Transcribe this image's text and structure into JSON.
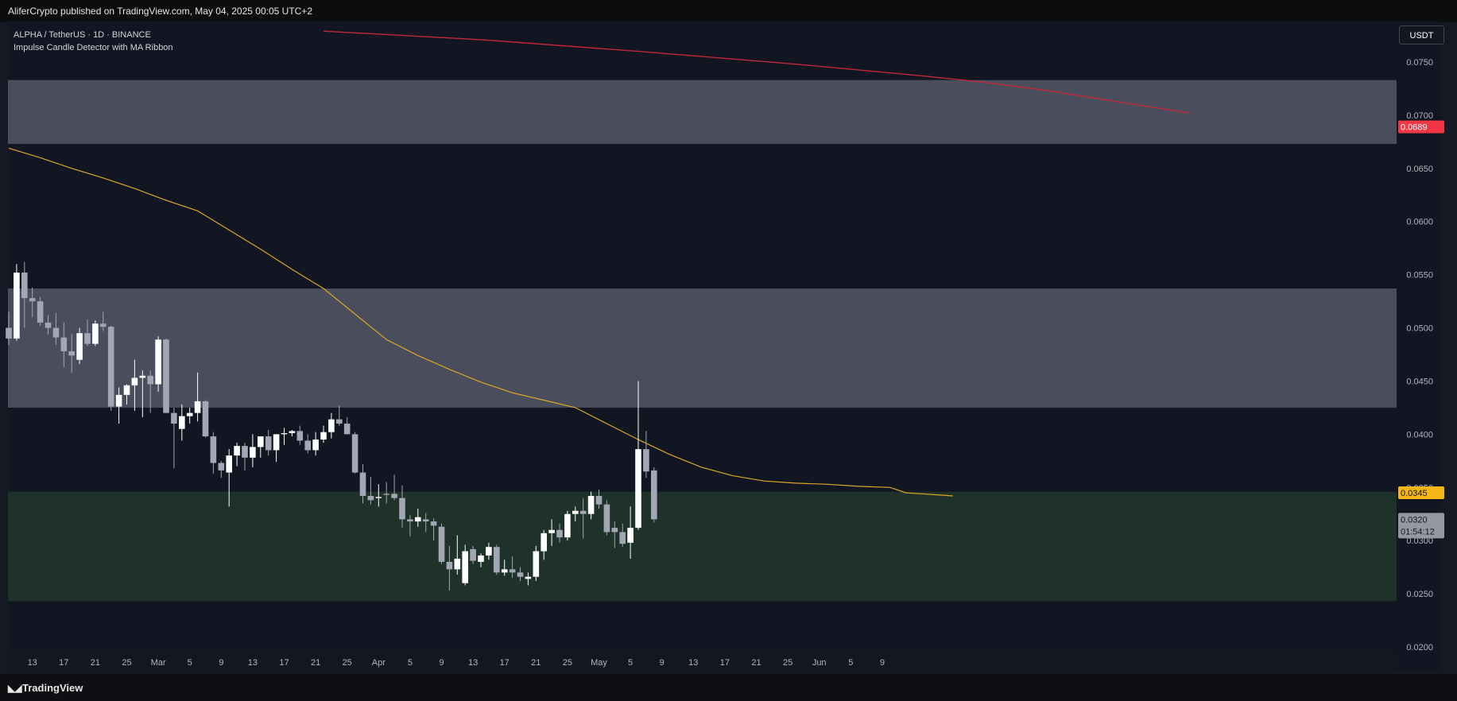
{
  "header": {
    "published": "AliferCrypto published on TradingView.com, May 04, 2025 00:05 UTC+2"
  },
  "legend": {
    "symbol": "ALPHA / TetherUS · 1D · BINANCE",
    "indicator": "Impulse Candle Detector with MA Ribbon"
  },
  "currency_button": "USDT",
  "footer": {
    "brand": "TradingView"
  },
  "colors": {
    "zone_gray": "#4a4e5c",
    "zone_green": "#1e3229",
    "ma_long": "#c2273a",
    "ma_mid": "#e0a526",
    "up_candle": "#ffffff",
    "down_candle": "#a3a6b4"
  },
  "chart_data": {
    "type": "candlestick",
    "title": "ALPHA / TetherUS · 1D · BINANCE",
    "y_axis_ticks": [
      "0.0750",
      "0.0700",
      "0.0650",
      "0.0600",
      "0.0550",
      "0.0500",
      "0.0450",
      "0.0400",
      "0.0350",
      "0.0300",
      "0.0250",
      "0.0200"
    ],
    "ylim": [
      0.02,
      0.0775
    ],
    "x_axis_ticks": [
      "13",
      "17",
      "21",
      "25",
      "Mar",
      "5",
      "9",
      "13",
      "17",
      "21",
      "25",
      "Apr",
      "5",
      "9",
      "13",
      "17",
      "21",
      "25",
      "May",
      "5",
      "9",
      "13",
      "17",
      "21",
      "25",
      "Jun",
      "5",
      "9"
    ],
    "price_labels": [
      {
        "name": "ma-long-value",
        "value": "0.0689",
        "bg": "#f23645",
        "fg": "#ffffff"
      },
      {
        "name": "ma-mid-value",
        "value": "0.0345",
        "bg": "#f5b617",
        "fg": "#131722"
      },
      {
        "name": "last-price",
        "value": "0.0320",
        "sub": "01:54:12",
        "bg": "#9598a1",
        "fg": "#131722"
      }
    ],
    "zones": [
      {
        "name": "upper-resistance-zone",
        "from": 0.0673,
        "to": 0.0733
      },
      {
        "name": "mid-resistance-zone",
        "from": 0.0425,
        "to": 0.0537
      },
      {
        "name": "support-zone",
        "from": 0.0243,
        "to": 0.0346
      }
    ],
    "ma_long": [
      [
        40,
        0.0779
      ],
      [
        60,
        0.0771
      ],
      [
        80,
        0.076
      ],
      [
        100,
        0.0748
      ],
      [
        116,
        0.0737
      ],
      [
        120,
        0.0734
      ],
      [
        124,
        0.0731
      ],
      [
        132,
        0.0723
      ],
      [
        150,
        0.0702
      ]
    ],
    "ma_mid": [
      [
        0,
        0.0669
      ],
      [
        4,
        0.066
      ],
      [
        8,
        0.065
      ],
      [
        12,
        0.0641
      ],
      [
        16,
        0.0631
      ],
      [
        20,
        0.062
      ],
      [
        24,
        0.061
      ],
      [
        28,
        0.0592
      ],
      [
        32,
        0.0574
      ],
      [
        36,
        0.0555
      ],
      [
        40,
        0.0537
      ],
      [
        44,
        0.0513
      ],
      [
        48,
        0.0489
      ],
      [
        52,
        0.0474
      ],
      [
        56,
        0.0461
      ],
      [
        60,
        0.0449
      ],
      [
        64,
        0.0439
      ],
      [
        68,
        0.0432
      ],
      [
        72,
        0.0425
      ],
      [
        76,
        0.041
      ],
      [
        80,
        0.0395
      ],
      [
        84,
        0.0381
      ],
      [
        88,
        0.0369
      ],
      [
        92,
        0.0361
      ],
      [
        96,
        0.0356
      ],
      [
        100,
        0.0354
      ],
      [
        104,
        0.0353
      ],
      [
        108,
        0.0351
      ],
      [
        112,
        0.035
      ],
      [
        114,
        0.0345
      ],
      [
        116,
        0.0344
      ],
      [
        118,
        0.0343
      ],
      [
        120,
        0.0342
      ]
    ],
    "candles": [
      {
        "d": "Feb 10",
        "o": 0.05,
        "h": 0.0515,
        "l": 0.0484,
        "c": 0.049
      },
      {
        "d": "Feb 11",
        "o": 0.049,
        "h": 0.056,
        "l": 0.0488,
        "c": 0.0552
      },
      {
        "d": "Feb 12",
        "o": 0.0552,
        "h": 0.0562,
        "l": 0.05,
        "c": 0.0528
      },
      {
        "d": "Feb 13",
        "o": 0.0528,
        "h": 0.0538,
        "l": 0.051,
        "c": 0.0525
      },
      {
        "d": "Feb 14",
        "o": 0.0525,
        "h": 0.0529,
        "l": 0.0502,
        "c": 0.0505
      },
      {
        "d": "Feb 15",
        "o": 0.0505,
        "h": 0.0512,
        "l": 0.0494,
        "c": 0.05
      },
      {
        "d": "Feb 16",
        "o": 0.05,
        "h": 0.0514,
        "l": 0.0484,
        "c": 0.0491
      },
      {
        "d": "Feb 17",
        "o": 0.0491,
        "h": 0.0505,
        "l": 0.0463,
        "c": 0.0478
      },
      {
        "d": "Feb 18",
        "o": 0.0478,
        "h": 0.0494,
        "l": 0.0458,
        "c": 0.0474
      },
      {
        "d": "Feb 19",
        "o": 0.047,
        "h": 0.05,
        "l": 0.0466,
        "c": 0.0495
      },
      {
        "d": "Feb 20",
        "o": 0.0495,
        "h": 0.0508,
        "l": 0.0483,
        "c": 0.0485
      },
      {
        "d": "Feb 21",
        "o": 0.0485,
        "h": 0.0507,
        "l": 0.0483,
        "c": 0.0504
      },
      {
        "d": "Feb 22",
        "o": 0.0504,
        "h": 0.0515,
        "l": 0.0497,
        "c": 0.0501
      },
      {
        "d": "Feb 23",
        "o": 0.0501,
        "h": 0.0502,
        "l": 0.0422,
        "c": 0.0426
      },
      {
        "d": "Feb 24",
        "o": 0.0426,
        "h": 0.0444,
        "l": 0.041,
        "c": 0.0437
      },
      {
        "d": "Feb 25",
        "o": 0.0437,
        "h": 0.0447,
        "l": 0.0428,
        "c": 0.0446
      },
      {
        "d": "Feb 26",
        "o": 0.0446,
        "h": 0.047,
        "l": 0.0422,
        "c": 0.0453
      },
      {
        "d": "Feb 27",
        "o": 0.0453,
        "h": 0.046,
        "l": 0.0416,
        "c": 0.0455
      },
      {
        "d": "Feb 28",
        "o": 0.0455,
        "h": 0.046,
        "l": 0.042,
        "c": 0.0447
      },
      {
        "d": "Mar 1",
        "o": 0.0447,
        "h": 0.0492,
        "l": 0.044,
        "c": 0.0489
      },
      {
        "d": "Mar 2",
        "o": 0.0489,
        "h": 0.049,
        "l": 0.0422,
        "c": 0.042
      },
      {
        "d": "Mar 3",
        "o": 0.042,
        "h": 0.0425,
        "l": 0.0368,
        "c": 0.041
      },
      {
        "d": "Mar 4",
        "o": 0.0405,
        "h": 0.0428,
        "l": 0.0394,
        "c": 0.0417
      },
      {
        "d": "Mar 5",
        "o": 0.0417,
        "h": 0.0425,
        "l": 0.041,
        "c": 0.042
      },
      {
        "d": "Mar 6",
        "o": 0.042,
        "h": 0.0458,
        "l": 0.0412,
        "c": 0.0431
      },
      {
        "d": "Mar 7",
        "o": 0.0431,
        "h": 0.0432,
        "l": 0.0397,
        "c": 0.0398
      },
      {
        "d": "Mar 8",
        "o": 0.0398,
        "h": 0.0402,
        "l": 0.0363,
        "c": 0.0373
      },
      {
        "d": "Mar 9",
        "o": 0.0373,
        "h": 0.0375,
        "l": 0.0359,
        "c": 0.0366
      },
      {
        "d": "Mar 10",
        "o": 0.0364,
        "h": 0.0386,
        "l": 0.0332,
        "c": 0.038
      },
      {
        "d": "Mar 11",
        "o": 0.038,
        "h": 0.0392,
        "l": 0.037,
        "c": 0.0389
      },
      {
        "d": "Mar 12",
        "o": 0.0389,
        "h": 0.0392,
        "l": 0.0366,
        "c": 0.0378
      },
      {
        "d": "Mar 13",
        "o": 0.0378,
        "h": 0.04,
        "l": 0.0369,
        "c": 0.0388
      },
      {
        "d": "Mar 14",
        "o": 0.0388,
        "h": 0.0395,
        "l": 0.0378,
        "c": 0.0398
      },
      {
        "d": "Mar 15",
        "o": 0.0398,
        "h": 0.0404,
        "l": 0.038,
        "c": 0.0385
      },
      {
        "d": "Mar 16",
        "o": 0.0385,
        "h": 0.04,
        "l": 0.0374,
        "c": 0.04
      },
      {
        "d": "Mar 17",
        "o": 0.04,
        "h": 0.0406,
        "l": 0.039,
        "c": 0.0401
      },
      {
        "d": "Mar 18",
        "o": 0.0401,
        "h": 0.0404,
        "l": 0.0398,
        "c": 0.0403
      },
      {
        "d": "Mar 19",
        "o": 0.0403,
        "h": 0.0408,
        "l": 0.039,
        "c": 0.0394
      },
      {
        "d": "Mar 20",
        "o": 0.0394,
        "h": 0.04,
        "l": 0.0382,
        "c": 0.0385
      },
      {
        "d": "Mar 21",
        "o": 0.0385,
        "h": 0.0402,
        "l": 0.038,
        "c": 0.0395
      },
      {
        "d": "Mar 22",
        "o": 0.0395,
        "h": 0.0408,
        "l": 0.0392,
        "c": 0.0402
      },
      {
        "d": "Mar 23",
        "o": 0.0402,
        "h": 0.042,
        "l": 0.0396,
        "c": 0.0414
      },
      {
        "d": "Mar 24",
        "o": 0.0414,
        "h": 0.0427,
        "l": 0.0408,
        "c": 0.041
      },
      {
        "d": "Mar 25",
        "o": 0.041,
        "h": 0.0416,
        "l": 0.04,
        "c": 0.04
      },
      {
        "d": "Mar 26",
        "o": 0.04,
        "h": 0.0402,
        "l": 0.0363,
        "c": 0.0364
      },
      {
        "d": "Mar 27",
        "o": 0.0364,
        "h": 0.0372,
        "l": 0.0335,
        "c": 0.0342
      },
      {
        "d": "Mar 28",
        "o": 0.0342,
        "h": 0.036,
        "l": 0.0334,
        "c": 0.0338
      },
      {
        "d": "Mar 29",
        "o": 0.034,
        "h": 0.0353,
        "l": 0.0332,
        "c": 0.0341
      },
      {
        "d": "Mar 30",
        "o": 0.0344,
        "h": 0.0355,
        "l": 0.0335,
        "c": 0.0343
      },
      {
        "d": "Mar 31",
        "o": 0.0344,
        "h": 0.0362,
        "l": 0.0338,
        "c": 0.034
      },
      {
        "d": "Apr 1",
        "o": 0.034,
        "h": 0.0352,
        "l": 0.0312,
        "c": 0.032
      },
      {
        "d": "Apr 2",
        "o": 0.032,
        "h": 0.0324,
        "l": 0.0304,
        "c": 0.0318
      },
      {
        "d": "Apr 3",
        "o": 0.0318,
        "h": 0.033,
        "l": 0.0313,
        "c": 0.0322
      },
      {
        "d": "Apr 4",
        "o": 0.032,
        "h": 0.0326,
        "l": 0.0308,
        "c": 0.0318
      },
      {
        "d": "Apr 5",
        "o": 0.0318,
        "h": 0.0321,
        "l": 0.03,
        "c": 0.0314
      },
      {
        "d": "Apr 6",
        "o": 0.0313,
        "h": 0.0316,
        "l": 0.0278,
        "c": 0.028
      },
      {
        "d": "Apr 7",
        "o": 0.028,
        "h": 0.0295,
        "l": 0.0253,
        "c": 0.0273
      },
      {
        "d": "Apr 8",
        "o": 0.0273,
        "h": 0.0305,
        "l": 0.0268,
        "c": 0.0283
      },
      {
        "d": "Apr 9",
        "o": 0.026,
        "h": 0.0296,
        "l": 0.0258,
        "c": 0.029
      },
      {
        "d": "Apr 10",
        "o": 0.0292,
        "h": 0.0295,
        "l": 0.0278,
        "c": 0.0281
      },
      {
        "d": "Apr 11",
        "o": 0.028,
        "h": 0.0288,
        "l": 0.0275,
        "c": 0.0286
      },
      {
        "d": "Apr 12",
        "o": 0.0286,
        "h": 0.0298,
        "l": 0.0282,
        "c": 0.0294
      },
      {
        "d": "Apr 13",
        "o": 0.0294,
        "h": 0.0296,
        "l": 0.0268,
        "c": 0.027
      },
      {
        "d": "Apr 14",
        "o": 0.027,
        "h": 0.0282,
        "l": 0.0267,
        "c": 0.0273
      },
      {
        "d": "Apr 15",
        "o": 0.0273,
        "h": 0.0285,
        "l": 0.0265,
        "c": 0.027
      },
      {
        "d": "Apr 16",
        "o": 0.027,
        "h": 0.0275,
        "l": 0.0262,
        "c": 0.0266
      },
      {
        "d": "Apr 17",
        "o": 0.0264,
        "h": 0.027,
        "l": 0.0258,
        "c": 0.0266
      },
      {
        "d": "Apr 18",
        "o": 0.0266,
        "h": 0.0295,
        "l": 0.0262,
        "c": 0.029
      },
      {
        "d": "Apr 19",
        "o": 0.029,
        "h": 0.031,
        "l": 0.0282,
        "c": 0.0307
      },
      {
        "d": "Apr 20",
        "o": 0.0307,
        "h": 0.032,
        "l": 0.0295,
        "c": 0.031
      },
      {
        "d": "Apr 21",
        "o": 0.031,
        "h": 0.0316,
        "l": 0.0298,
        "c": 0.0303
      },
      {
        "d": "Apr 22",
        "o": 0.0303,
        "h": 0.0328,
        "l": 0.03,
        "c": 0.0325
      },
      {
        "d": "Apr 23",
        "o": 0.0325,
        "h": 0.0332,
        "l": 0.0318,
        "c": 0.0328
      },
      {
        "d": "Apr 24",
        "o": 0.0328,
        "h": 0.034,
        "l": 0.0302,
        "c": 0.0325
      },
      {
        "d": "Apr 25",
        "o": 0.0325,
        "h": 0.0346,
        "l": 0.032,
        "c": 0.0342
      },
      {
        "d": "Apr 26",
        "o": 0.0342,
        "h": 0.0348,
        "l": 0.033,
        "c": 0.0334
      },
      {
        "d": "Apr 27",
        "o": 0.0334,
        "h": 0.0338,
        "l": 0.0305,
        "c": 0.0308
      },
      {
        "d": "Apr 28",
        "o": 0.0312,
        "h": 0.0318,
        "l": 0.0293,
        "c": 0.0308
      },
      {
        "d": "Apr 29",
        "o": 0.0308,
        "h": 0.0316,
        "l": 0.0294,
        "c": 0.0297
      },
      {
        "d": "Apr 30",
        "o": 0.0298,
        "h": 0.0332,
        "l": 0.0283,
        "c": 0.0312
      },
      {
        "d": "May 1",
        "o": 0.0312,
        "h": 0.045,
        "l": 0.031,
        "c": 0.0386
      },
      {
        "d": "May 2",
        "o": 0.0386,
        "h": 0.0403,
        "l": 0.0359,
        "c": 0.0365
      },
      {
        "d": "May 3",
        "o": 0.0366,
        "h": 0.0369,
        "l": 0.0317,
        "c": 0.032
      }
    ]
  }
}
